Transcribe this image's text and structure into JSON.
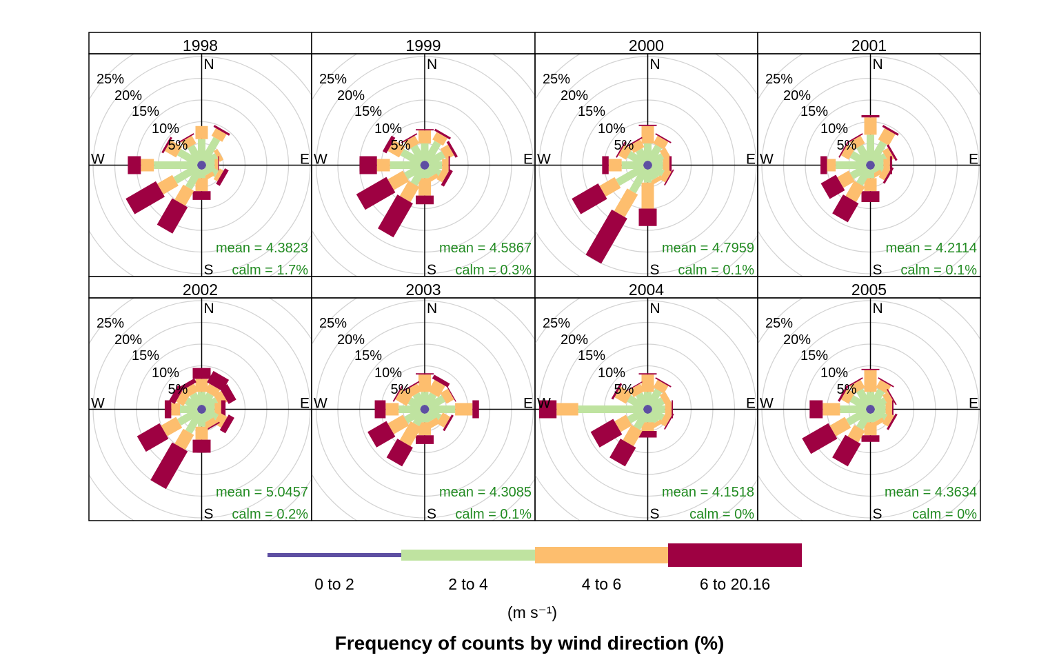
{
  "chart_data": {
    "type": "windrose",
    "title": "Frequency of counts by wind direction (%)",
    "directions_deg": [
      0,
      30,
      60,
      90,
      120,
      150,
      180,
      210,
      240,
      270,
      300,
      330
    ],
    "direction_labels": {
      "N": "N",
      "E": "E",
      "S": "S",
      "W": "W"
    },
    "ring_labels": [
      "5%",
      "10%",
      "15%",
      "20%",
      "25%"
    ],
    "ring_values": [
      5,
      10,
      15,
      20,
      25
    ],
    "speed_bins": [
      {
        "label": "0 to 2",
        "color": "#5e4fa2"
      },
      {
        "label": "2 to 4",
        "color": "#bfe3a0"
      },
      {
        "label": "4 to 6",
        "color": "#fdbe6e"
      },
      {
        "label": "6 to 20.16",
        "color": "#9e0142"
      }
    ],
    "units": "(m s⁻¹)",
    "panels": [
      {
        "year": "1998",
        "mean": "mean = 4.3823",
        "calm": "calm = 1.7%",
        "freq": [
          [
            1,
            5,
            3,
            0
          ],
          [
            1,
            6,
            2,
            0.5
          ],
          [
            1,
            3,
            1,
            0
          ],
          [
            1,
            2,
            0.8,
            0.2
          ],
          [
            1,
            3,
            1,
            1
          ],
          [
            1,
            1.5,
            1,
            0
          ],
          [
            1,
            2,
            3,
            2
          ],
          [
            1,
            5,
            4,
            7
          ],
          [
            1,
            6,
            4,
            8
          ],
          [
            1,
            10,
            3,
            3
          ],
          [
            1,
            5,
            3,
            0.5
          ],
          [
            1,
            4,
            2,
            0.3
          ]
        ]
      },
      {
        "year": "1999",
        "mean": "mean = 4.5867",
        "calm": "calm = 0.3%",
        "freq": [
          [
            1,
            4,
            3,
            0.3
          ],
          [
            1,
            5,
            2,
            0.5
          ],
          [
            1,
            4,
            2,
            0.6
          ],
          [
            1,
            3,
            1.5,
            0.3
          ],
          [
            1,
            3,
            1.5,
            0.8
          ],
          [
            1,
            2,
            1,
            0
          ],
          [
            1,
            2,
            4,
            2
          ],
          [
            1,
            4,
            4,
            9
          ],
          [
            1,
            4,
            4,
            8
          ],
          [
            1,
            7,
            3,
            4
          ],
          [
            1,
            5,
            3,
            1
          ],
          [
            1,
            4,
            2,
            0.3
          ]
        ]
      },
      {
        "year": "2000",
        "mean": "mean = 4.7959",
        "calm": "calm = 0.1%",
        "freq": [
          [
            1,
            4,
            4,
            0.3
          ],
          [
            1,
            4,
            2,
            0.3
          ],
          [
            1,
            3,
            1.5,
            0
          ],
          [
            1,
            2.5,
            1.5,
            0.5
          ],
          [
            1,
            3,
            1.5,
            0.3
          ],
          [
            1,
            2.5,
            1,
            0
          ],
          [
            1,
            3,
            6,
            4
          ],
          [
            1,
            6,
            6,
            12
          ],
          [
            1,
            7,
            4,
            7
          ],
          [
            1,
            5,
            3,
            1.5
          ],
          [
            1,
            4,
            2,
            0.3
          ],
          [
            1,
            3,
            2,
            0.3
          ]
        ]
      },
      {
        "year": "2001",
        "mean": "mean = 4.2114",
        "calm": "calm = 0.1%",
        "freq": [
          [
            1,
            6,
            4,
            0.5
          ],
          [
            1,
            5,
            3,
            0.5
          ],
          [
            1,
            3,
            1.5,
            0.5
          ],
          [
            1,
            2,
            1.5,
            0.5
          ],
          [
            1,
            2,
            1.5,
            0.5
          ],
          [
            1,
            1,
            1,
            0
          ],
          [
            1,
            2,
            3,
            2.5
          ],
          [
            1,
            4,
            4,
            5
          ],
          [
            1,
            4,
            3,
            4
          ],
          [
            1,
            7,
            2,
            1.5
          ],
          [
            1,
            4,
            2,
            0.3
          ],
          [
            1,
            4,
            2,
            0.3
          ]
        ]
      },
      {
        "year": "2002",
        "mean": "mean = 5.0457",
        "calm": "calm = 0.2%",
        "freq": [
          [
            1,
            3,
            3,
            2.5
          ],
          [
            1,
            3,
            2,
            3
          ],
          [
            1,
            3,
            2,
            2
          ],
          [
            1,
            2,
            1.5,
            1
          ],
          [
            1,
            3,
            2,
            1.5
          ],
          [
            1,
            2,
            1.5,
            0.3
          ],
          [
            1,
            3,
            3,
            3
          ],
          [
            1,
            5,
            4,
            10
          ],
          [
            1,
            5,
            4,
            6
          ],
          [
            1,
            4,
            2,
            1.5
          ],
          [
            1,
            3,
            2,
            1.5
          ],
          [
            1,
            3,
            2,
            1
          ]
        ]
      },
      {
        "year": "2003",
        "mean": "mean = 4.3085",
        "calm": "calm = 0.1%",
        "freq": [
          [
            1,
            3,
            4,
            0.3
          ],
          [
            1,
            3,
            3,
            1
          ],
          [
            1,
            4,
            2,
            0.2
          ],
          [
            1,
            6,
            4,
            1.5
          ],
          [
            1,
            3,
            2,
            0.5
          ],
          [
            1,
            2,
            1.5,
            0
          ],
          [
            1,
            2,
            3,
            2
          ],
          [
            1,
            3,
            5,
            5
          ],
          [
            1,
            4,
            4,
            5
          ],
          [
            1,
            5,
            3,
            2.5
          ],
          [
            1,
            3,
            3,
            0.3
          ],
          [
            1,
            3,
            2,
            0.3
          ]
        ]
      },
      {
        "year": "2004",
        "mean": "mean = 4.1518",
        "calm": "calm = 0%",
        "freq": [
          [
            1,
            3,
            4,
            0.3
          ],
          [
            1,
            4,
            2,
            0.3
          ],
          [
            1,
            3,
            1.5,
            0
          ],
          [
            1,
            3,
            1.5,
            0.3
          ],
          [
            1,
            3,
            1.5,
            0.3
          ],
          [
            1,
            2.5,
            1,
            0
          ],
          [
            1,
            2,
            2,
            1.5
          ],
          [
            1,
            4,
            4,
            5
          ],
          [
            1,
            4,
            3,
            6
          ],
          [
            1,
            15,
            5,
            4
          ],
          [
            1,
            4,
            3,
            0.5
          ],
          [
            1,
            3,
            2,
            0.2
          ]
        ]
      },
      {
        "year": "2005",
        "mean": "mean = 4.3634",
        "calm": "calm = 0%",
        "freq": [
          [
            1,
            3,
            5,
            0.3
          ],
          [
            1,
            4,
            2,
            0.3
          ],
          [
            1,
            3,
            1.5,
            0.3
          ],
          [
            1,
            2.5,
            1.5,
            0.3
          ],
          [
            1,
            3,
            1.5,
            0.5
          ],
          [
            1,
            2,
            1,
            0
          ],
          [
            1,
            2,
            3,
            1.5
          ],
          [
            1,
            4,
            3,
            6
          ],
          [
            1,
            5,
            4,
            7
          ],
          [
            1,
            6,
            4,
            3
          ],
          [
            1,
            4,
            2,
            0.5
          ],
          [
            1,
            4,
            2,
            0.3
          ]
        ]
      }
    ]
  }
}
